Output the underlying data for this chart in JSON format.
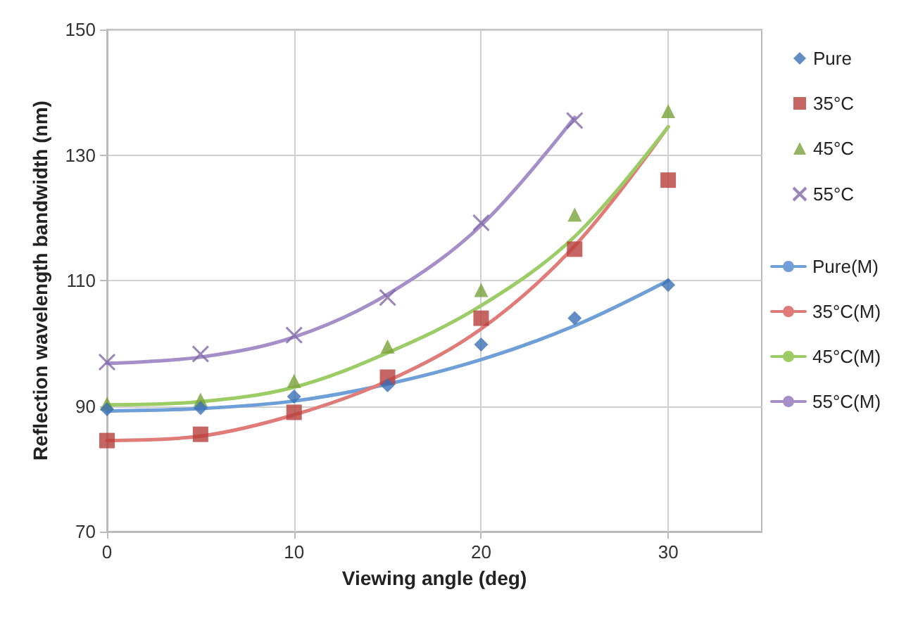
{
  "chart_data": {
    "type": "scatter",
    "xlabel": "Viewing angle (deg)",
    "ylabel": "Reflection wavelength bandwidth (nm)",
    "xlim": [
      0,
      35
    ],
    "xticks": [
      0,
      10,
      20,
      30
    ],
    "ylim": [
      70,
      150
    ],
    "yticks": [
      70,
      90,
      110,
      130,
      150
    ],
    "grid": true,
    "legend": "right",
    "series": [
      {
        "name": "Pure",
        "marker": "diamond",
        "color": "#3a6fb5",
        "x": [
          0,
          5,
          10,
          15,
          20,
          25,
          30
        ],
        "values": [
          89.5,
          89.7,
          91.5,
          93.3,
          99.8,
          104,
          109.3
        ]
      },
      {
        "name": "35°C",
        "marker": "square",
        "color": "#b8403c",
        "x": [
          0,
          5,
          10,
          15,
          20,
          25,
          30
        ],
        "values": [
          84.5,
          85.5,
          89,
          94.6,
          104,
          115,
          126
        ]
      },
      {
        "name": "45°C",
        "marker": "triangle",
        "color": "#78a23a",
        "x": [
          0,
          5,
          10,
          15,
          20,
          25,
          30
        ],
        "values": [
          90.4,
          91,
          94,
          99.5,
          108.5,
          120.5,
          137
        ]
      },
      {
        "name": "55°C",
        "marker": "cross",
        "color": "#8168a8",
        "x": [
          0,
          5,
          10,
          15,
          20,
          25
        ],
        "values": [
          97,
          98.3,
          101.3,
          107.3,
          119.2,
          135.5
        ]
      },
      {
        "name": "Pure(M)",
        "type": "line",
        "marker": "none",
        "color": "#6f9fd8",
        "x": [
          0,
          5,
          10,
          15,
          20,
          25,
          30
        ],
        "values": [
          89.2,
          89.6,
          90.8,
          93.5,
          97.4,
          102.8,
          110
        ]
      },
      {
        "name": "35°C(M)",
        "type": "line",
        "marker": "none",
        "color": "#e07b78",
        "x": [
          0,
          5,
          10,
          15,
          20,
          25,
          30
        ],
        "values": [
          84.5,
          85.2,
          88.6,
          94,
          102.3,
          115.5,
          134.5
        ]
      },
      {
        "name": "45°C(M)",
        "type": "line",
        "marker": "none",
        "color": "#9ccc65",
        "x": [
          0,
          5,
          10,
          15,
          20,
          25,
          30
        ],
        "values": [
          90.2,
          90.7,
          93,
          98.5,
          106,
          117,
          134.5
        ]
      },
      {
        "name": "55°C(M)",
        "type": "line",
        "marker": "none",
        "color": "#a48fc8",
        "x": [
          0,
          5,
          10,
          15,
          20,
          25
        ],
        "values": [
          96.8,
          97.8,
          101,
          107.8,
          118.8,
          136
        ]
      }
    ]
  }
}
